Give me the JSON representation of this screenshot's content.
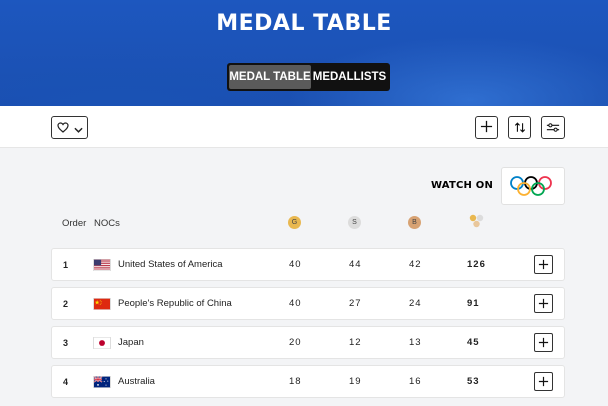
{
  "header": {
    "title": "MEDAL TABLE",
    "tabs": [
      {
        "label": "MEDAL TABLE",
        "active": true
      },
      {
        "label": "MEDALLISTS",
        "active": false
      }
    ]
  },
  "toolbar": {
    "favorites_icon": "heart-icon",
    "dropdown_icon": "chevron-down-icon",
    "expand_icon": "plus-icon",
    "sort_icon": "sort-icon",
    "filter_icon": "sliders-icon"
  },
  "watch": {
    "label": "WATCH ON",
    "logo": "olympic-rings-icon"
  },
  "table": {
    "columns": {
      "order": "Order",
      "noc": "NOCs",
      "gold": "G",
      "silver": "S",
      "bronze": "B"
    },
    "colors": {
      "gold": "#e9b850",
      "silver": "#dcdcdc",
      "bronze": "#d7a273"
    },
    "rows": [
      {
        "rank": "1",
        "country": "United States of America",
        "flag": "usa-flag-icon",
        "gold": "40",
        "silver": "44",
        "bronze": "42",
        "total": "126"
      },
      {
        "rank": "2",
        "country": "People's Republic of China",
        "flag": "china-flag-icon",
        "gold": "40",
        "silver": "27",
        "bronze": "24",
        "total": "91"
      },
      {
        "rank": "3",
        "country": "Japan",
        "flag": "japan-flag-icon",
        "gold": "20",
        "silver": "12",
        "bronze": "13",
        "total": "45"
      },
      {
        "rank": "4",
        "country": "Australia",
        "flag": "australia-flag-icon",
        "gold": "18",
        "silver": "19",
        "bronze": "16",
        "total": "53"
      }
    ]
  }
}
